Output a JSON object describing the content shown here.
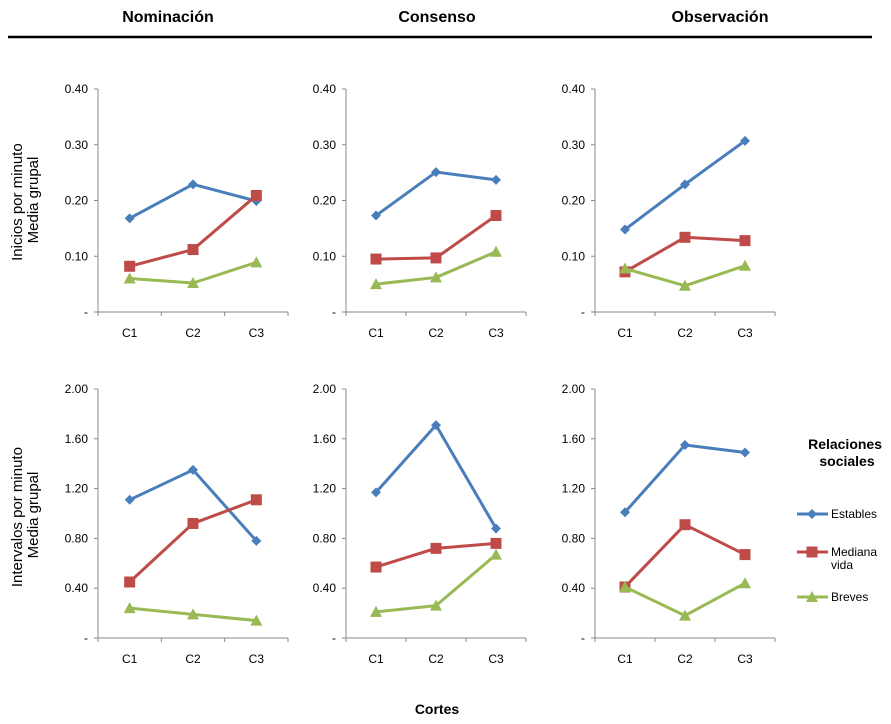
{
  "columns": [
    "Nominación",
    "Consenso",
    "Observación"
  ],
  "row_ylabels": [
    [
      "Inicios por minuto",
      "Media  grupal"
    ],
    [
      "Intervalos por minuto",
      "Media  grupal"
    ]
  ],
  "xlabel": "Cortes",
  "legend": {
    "title_lines": [
      "Relaciones",
      "sociales"
    ],
    "entries": [
      {
        "label_lines": [
          "Estables"
        ],
        "color": "#4a7ebb",
        "marker": "diamond"
      },
      {
        "label_lines": [
          "Mediana",
          "vida"
        ],
        "color": "#be4b48",
        "marker": "square"
      },
      {
        "label_lines": [
          "Breves"
        ],
        "color": "#98b954",
        "marker": "triangle"
      }
    ]
  },
  "chart_data": [
    {
      "type": "line",
      "row": 0,
      "col": 0,
      "categories": [
        "C1",
        "C2",
        "C3"
      ],
      "ylim": [
        0,
        0.4
      ],
      "ytick_labels": [
        "-",
        "0.10",
        "0.20",
        "0.30",
        "0.40"
      ],
      "series": [
        {
          "name": "Estables",
          "values": [
            0.168,
            0.229,
            0.199
          ]
        },
        {
          "name": "Mediana vida",
          "values": [
            0.082,
            0.112,
            0.209
          ]
        },
        {
          "name": "Breves",
          "values": [
            0.06,
            0.052,
            0.089
          ]
        }
      ]
    },
    {
      "type": "line",
      "row": 0,
      "col": 1,
      "categories": [
        "C1",
        "C2",
        "C3"
      ],
      "ylim": [
        0,
        0.4
      ],
      "ytick_labels": [
        "-",
        "0.10",
        "0.20",
        "0.30",
        "0.40"
      ],
      "series": [
        {
          "name": "Estables",
          "values": [
            0.173,
            0.251,
            0.237
          ]
        },
        {
          "name": "Mediana vida",
          "values": [
            0.095,
            0.097,
            0.173
          ]
        },
        {
          "name": "Breves",
          "values": [
            0.05,
            0.062,
            0.108
          ]
        }
      ]
    },
    {
      "type": "line",
      "row": 0,
      "col": 2,
      "categories": [
        "C1",
        "C2",
        "C3"
      ],
      "ylim": [
        0,
        0.4
      ],
      "ytick_labels": [
        "-",
        "0.10",
        "0.20",
        "0.30",
        "0.40"
      ],
      "series": [
        {
          "name": "Estables",
          "values": [
            0.148,
            0.229,
            0.307
          ]
        },
        {
          "name": "Mediana vida",
          "values": [
            0.072,
            0.134,
            0.128
          ]
        },
        {
          "name": "Breves",
          "values": [
            0.078,
            0.047,
            0.083
          ]
        }
      ]
    },
    {
      "type": "line",
      "row": 1,
      "col": 0,
      "categories": [
        "C1",
        "C2",
        "C3"
      ],
      "ylim": [
        0,
        2.0
      ],
      "ytick_labels": [
        "-",
        "0.40",
        "0.80",
        "1.20",
        "1.60",
        "2.00"
      ],
      "series": [
        {
          "name": "Estables",
          "values": [
            1.11,
            1.35,
            0.78
          ]
        },
        {
          "name": "Mediana vida",
          "values": [
            0.45,
            0.92,
            1.11
          ]
        },
        {
          "name": "Breves",
          "values": [
            0.24,
            0.19,
            0.14
          ]
        }
      ]
    },
    {
      "type": "line",
      "row": 1,
      "col": 1,
      "categories": [
        "C1",
        "C2",
        "C3"
      ],
      "ylim": [
        0,
        2.0
      ],
      "ytick_labels": [
        "-",
        "0.40",
        "0.80",
        "1.20",
        "1.60",
        "2.00"
      ],
      "series": [
        {
          "name": "Estables",
          "values": [
            1.17,
            1.71,
            0.88
          ]
        },
        {
          "name": "Mediana vida",
          "values": [
            0.57,
            0.72,
            0.76
          ]
        },
        {
          "name": "Breves",
          "values": [
            0.21,
            0.26,
            0.67
          ]
        }
      ]
    },
    {
      "type": "line",
      "row": 1,
      "col": 2,
      "categories": [
        "C1",
        "C2",
        "C3"
      ],
      "ylim": [
        0,
        2.0
      ],
      "ytick_labels": [
        "-",
        "0.40",
        "0.80",
        "1.20",
        "1.60",
        "2.00"
      ],
      "series": [
        {
          "name": "Estables",
          "values": [
            1.01,
            1.55,
            1.49
          ]
        },
        {
          "name": "Mediana vida",
          "values": [
            0.41,
            0.91,
            0.67
          ]
        },
        {
          "name": "Breves",
          "values": [
            0.41,
            0.18,
            0.44
          ]
        }
      ]
    }
  ]
}
